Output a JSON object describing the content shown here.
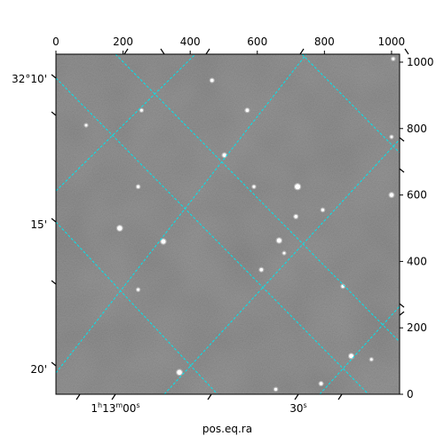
{
  "chart_data": {
    "type": "scatter",
    "title": "",
    "xlabel": "pos.eq.ra",
    "ylabel": "",
    "pixel_axes": {
      "x": {
        "range": [
          0,
          1024
        ],
        "ticks": [
          0,
          200,
          400,
          600,
          800,
          1000
        ]
      },
      "y": {
        "range": [
          0,
          1024
        ],
        "ticks": [
          0,
          200,
          400,
          600,
          800,
          1000
        ]
      }
    },
    "world_ticks": {
      "ra": [
        "1h13m00s",
        "30s"
      ],
      "dec": [
        "32°10'",
        "15'",
        "20'"
      ]
    },
    "grid": true,
    "grid_color": "#00e5ee",
    "background_color": "#777777",
    "sources": [
      {
        "x": 720,
        "y": 625,
        "brightness": 1.0
      },
      {
        "x": 190,
        "y": 500,
        "brightness": 0.9
      },
      {
        "x": 320,
        "y": 460,
        "brightness": 0.8
      },
      {
        "x": 665,
        "y": 463,
        "brightness": 0.8
      },
      {
        "x": 368,
        "y": 66,
        "brightness": 0.9
      },
      {
        "x": 880,
        "y": 115,
        "brightness": 0.75
      },
      {
        "x": 1000,
        "y": 600,
        "brightness": 0.7
      },
      {
        "x": 502,
        "y": 720,
        "brightness": 0.6
      },
      {
        "x": 570,
        "y": 855,
        "brightness": 0.5
      },
      {
        "x": 465,
        "y": 945,
        "brightness": 0.5
      },
      {
        "x": 715,
        "y": 535,
        "brightness": 0.5
      },
      {
        "x": 612,
        "y": 375,
        "brightness": 0.5
      },
      {
        "x": 855,
        "y": 325,
        "brightness": 0.4
      },
      {
        "x": 790,
        "y": 32,
        "brightness": 0.5
      },
      {
        "x": 655,
        "y": 15,
        "brightness": 0.4
      },
      {
        "x": 245,
        "y": 625,
        "brightness": 0.4
      },
      {
        "x": 795,
        "y": 555,
        "brightness": 0.4
      },
      {
        "x": 245,
        "y": 315,
        "brightness": 0.35
      },
      {
        "x": 590,
        "y": 625,
        "brightness": 0.35
      },
      {
        "x": 255,
        "y": 855,
        "brightness": 0.35
      },
      {
        "x": 1005,
        "y": 1010,
        "brightness": 0.35
      },
      {
        "x": 940,
        "y": 105,
        "brightness": 0.3
      },
      {
        "x": 90,
        "y": 810,
        "brightness": 0.3
      },
      {
        "x": 680,
        "y": 425,
        "brightness": 0.3
      },
      {
        "x": 1000,
        "y": 775,
        "brightness": 0.3
      }
    ]
  }
}
